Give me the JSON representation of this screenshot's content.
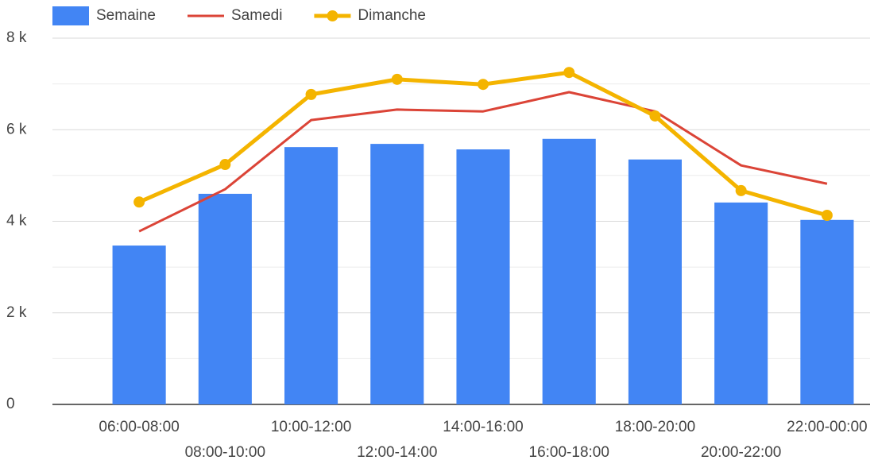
{
  "chart_data": {
    "type": "bar_line",
    "categories": [
      "06:00-08:00",
      "08:00-10:00",
      "10:00-12:00",
      "12:00-14:00",
      "14:00-16:00",
      "16:00-18:00",
      "18:00-20:00",
      "20:00-22:00",
      "22:00-00:00"
    ],
    "series": [
      {
        "name": "Semaine",
        "type": "bar",
        "color": "#4285f4",
        "values": [
          3470,
          4600,
          5620,
          5690,
          5570,
          5800,
          5350,
          4410,
          4030
        ]
      },
      {
        "name": "Samedi",
        "type": "line",
        "color": "#db4437",
        "values": [
          3780,
          4700,
          6210,
          6440,
          6400,
          6820,
          6400,
          5220,
          4820
        ]
      },
      {
        "name": "Dimanche",
        "type": "line",
        "markers": true,
        "color": "#f4b400",
        "values": [
          4420,
          5240,
          6770,
          7100,
          6990,
          7250,
          6300,
          4670,
          4130
        ]
      }
    ],
    "ylim": [
      0,
      8000
    ],
    "yticks": [
      {
        "value": 0,
        "label": "0"
      },
      {
        "value": 2000,
        "label": "2 k"
      },
      {
        "value": 4000,
        "label": "4 k"
      },
      {
        "value": 6000,
        "label": "6 k"
      },
      {
        "value": 8000,
        "label": "8 k"
      }
    ],
    "minor_yticks": [
      1000,
      3000,
      5000,
      7000
    ],
    "grid": true,
    "legend": "top-left"
  }
}
